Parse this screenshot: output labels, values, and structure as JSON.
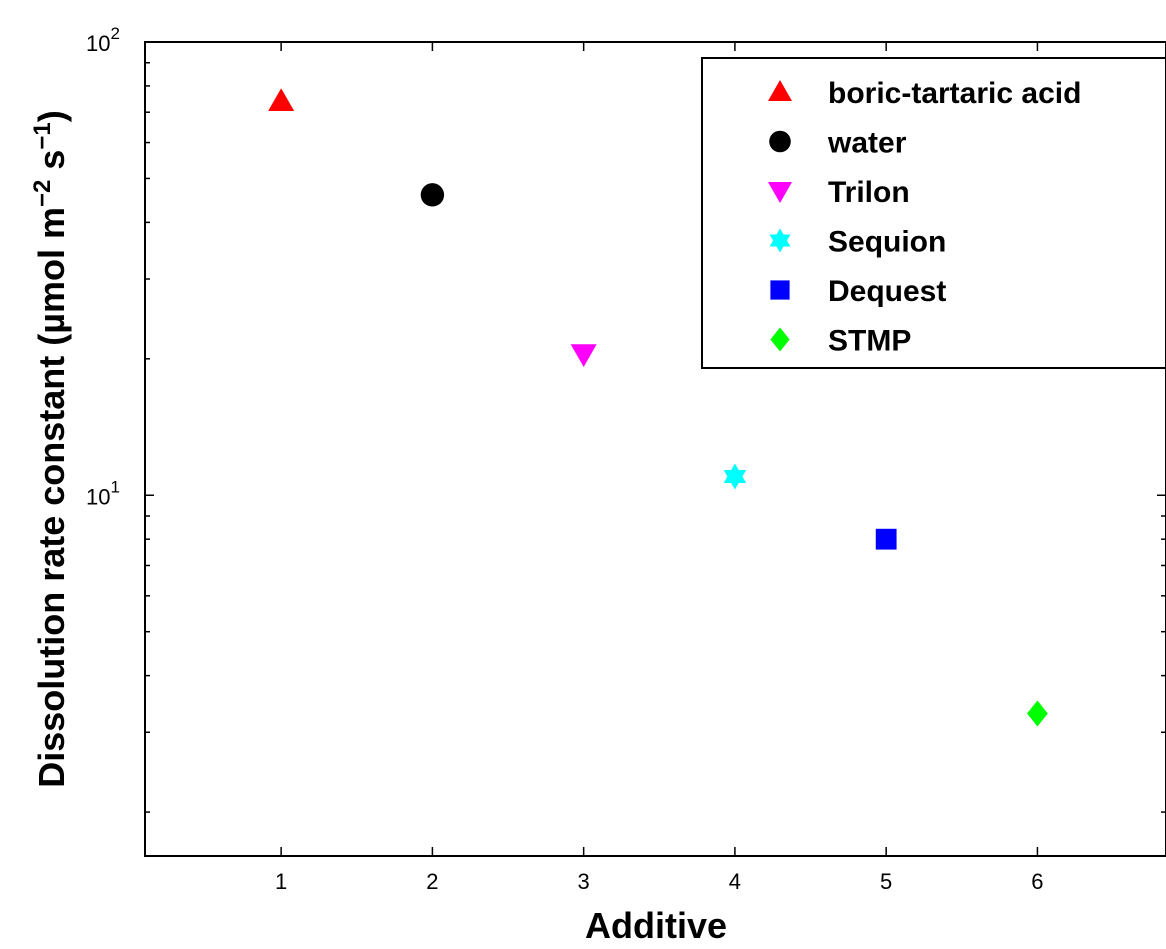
{
  "chart_data": {
    "type": "scatter",
    "xlabel": "Additive",
    "ylabel_main": "Dissolution rate constant (µmol m",
    "ylabel_sup1": "−2",
    "ylabel_mid": " s",
    "ylabel_sup2": "−1",
    "ylabel_end": ")",
    "y_scale": "log",
    "xlim": [
      0.1,
      6.85
    ],
    "ylim": [
      1.6,
      100
    ],
    "x_ticks": [
      "1",
      "2",
      "3",
      "4",
      "5",
      "6"
    ],
    "y_ticks": [
      {
        "base": "10",
        "exp": "1",
        "value": 10
      },
      {
        "base": "10",
        "exp": "2",
        "value": 100
      }
    ],
    "grid": false,
    "legend_position": "top-right",
    "series": [
      {
        "name": "boric-tartaric acid",
        "x": 1,
        "y": 74,
        "marker": "triangle-up",
        "color": "#ff0000"
      },
      {
        "name": "water",
        "x": 2,
        "y": 46,
        "marker": "circle",
        "color": "#000000"
      },
      {
        "name": "Trilon",
        "x": 3,
        "y": 20.5,
        "marker": "triangle-down",
        "color": "#ff00ff"
      },
      {
        "name": "Sequion",
        "x": 4,
        "y": 11,
        "marker": "hexagram",
        "color": "#00ffff"
      },
      {
        "name": "Dequest",
        "x": 5,
        "y": 8,
        "marker": "square",
        "color": "#0000ff"
      },
      {
        "name": "STMP",
        "x": 6,
        "y": 3.3,
        "marker": "diamond",
        "color": "#00ff00"
      }
    ]
  }
}
